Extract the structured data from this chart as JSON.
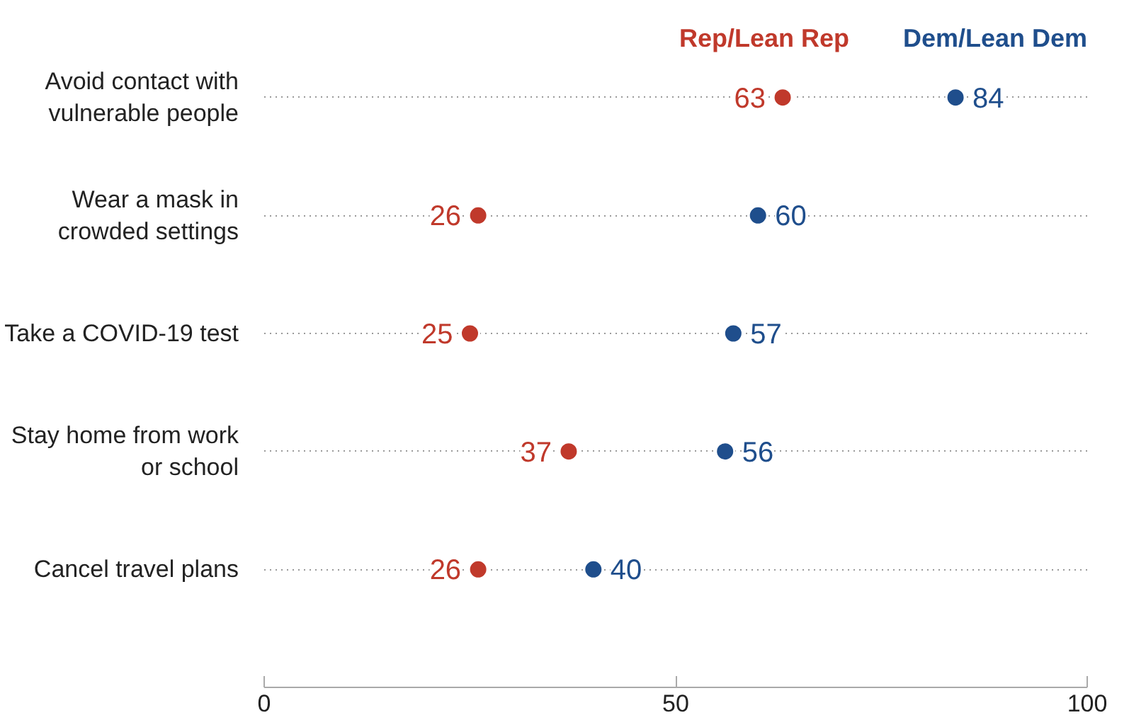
{
  "chart_data": {
    "type": "scatter",
    "categories": [
      "Avoid contact with\nvulnerable people",
      "Wear a mask in\ncrowded settings",
      "Take a COVID-19 test",
      "Stay home from work\nor school",
      "Cancel travel plans"
    ],
    "orientation": "horizontal",
    "series": [
      {
        "name": "Rep/Lean Rep",
        "color": "#c0392b",
        "values": [
          63,
          26,
          25,
          37,
          26
        ]
      },
      {
        "name": "Dem/Lean Dem",
        "color": "#1f4e8c",
        "values": [
          84,
          60,
          57,
          56,
          40
        ]
      }
    ],
    "xlim": [
      0,
      100
    ],
    "xticks": [
      0,
      50,
      100
    ],
    "grid": "y",
    "legend": "top right",
    "data_labels": true,
    "marker": "circle"
  }
}
